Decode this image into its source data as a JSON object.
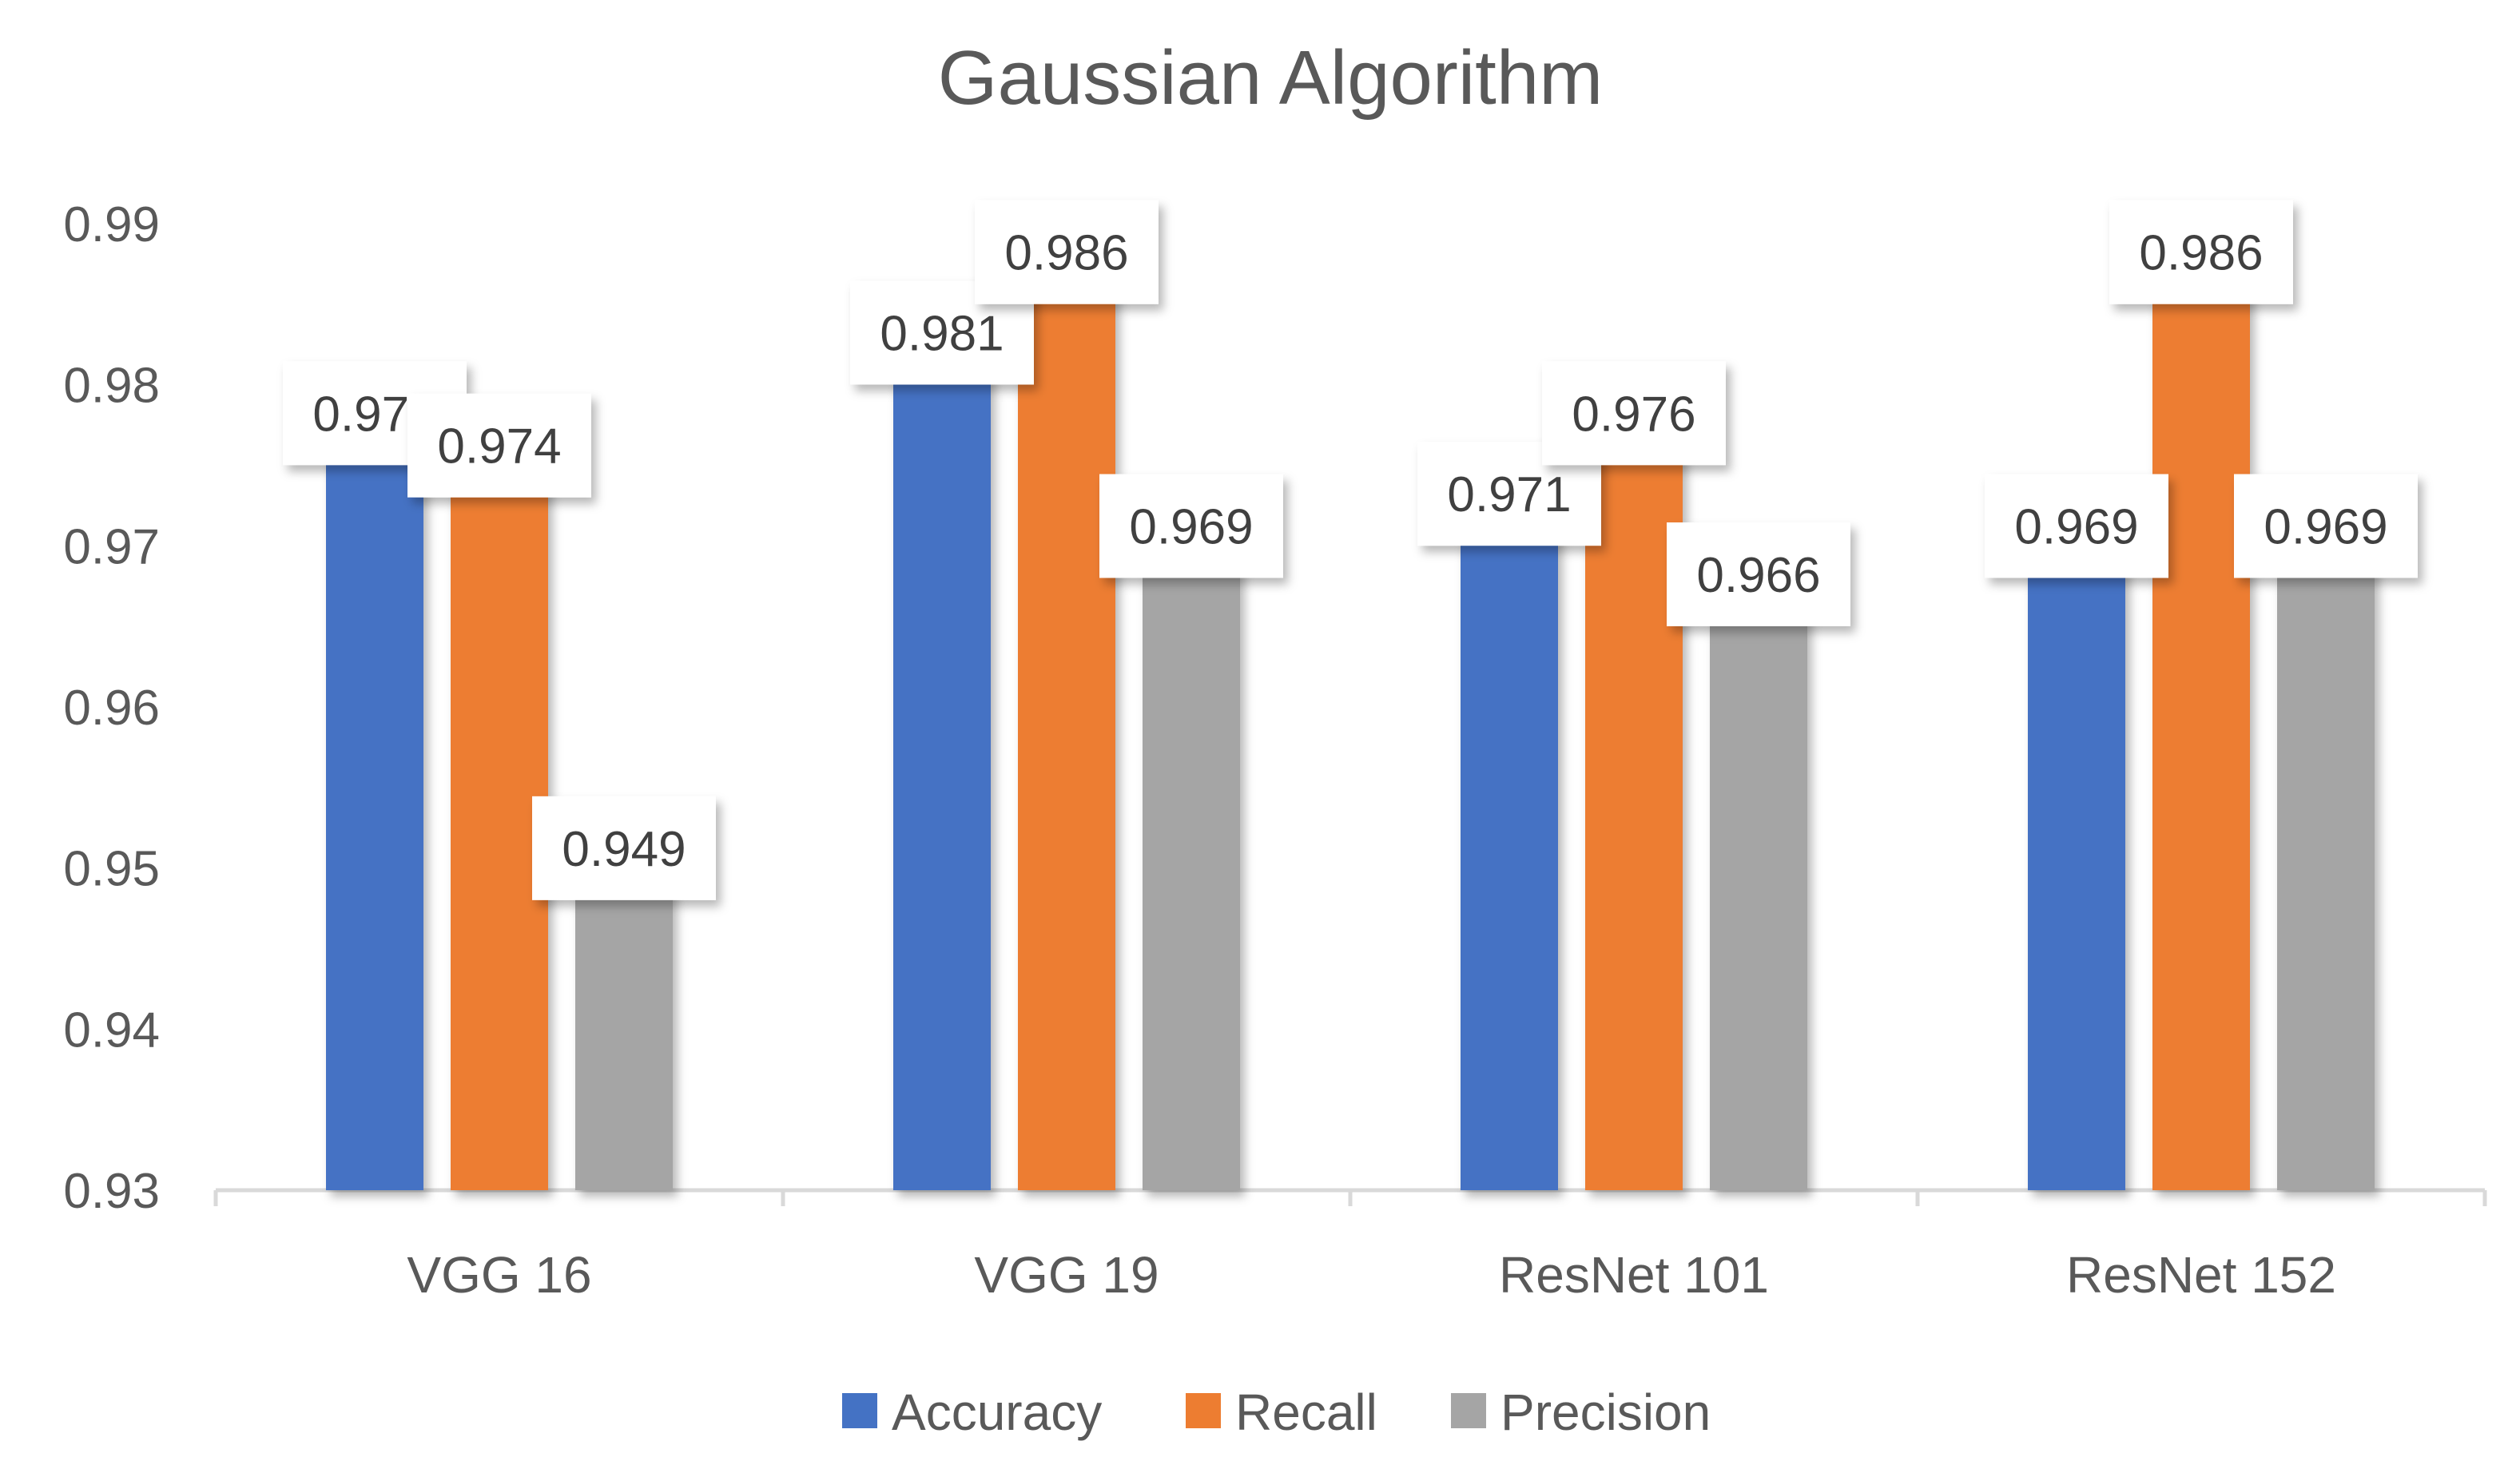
{
  "chart_data": {
    "type": "bar",
    "title": "Gaussian Algorithm",
    "xlabel": "",
    "ylabel": "",
    "categories": [
      "VGG 16",
      "VGG 19",
      "ResNet 101",
      "ResNet 152"
    ],
    "series": [
      {
        "name": "Accuracy",
        "color": "#4472C4",
        "values": [
          0.976,
          0.981,
          0.971,
          0.969
        ]
      },
      {
        "name": "Recall",
        "color": "#ED7D31",
        "values": [
          0.974,
          0.986,
          0.976,
          0.986
        ]
      },
      {
        "name": "Precision",
        "color": "#A5A5A5",
        "values": [
          0.949,
          0.969,
          0.966,
          0.969
        ]
      }
    ],
    "ylim": [
      0.93,
      0.99
    ],
    "yticks": [
      "0.93",
      "0.94",
      "0.95",
      "0.96",
      "0.97",
      "0.98",
      "0.99"
    ],
    "grid": false,
    "legend_position": "bottom",
    "data_labels": true
  }
}
